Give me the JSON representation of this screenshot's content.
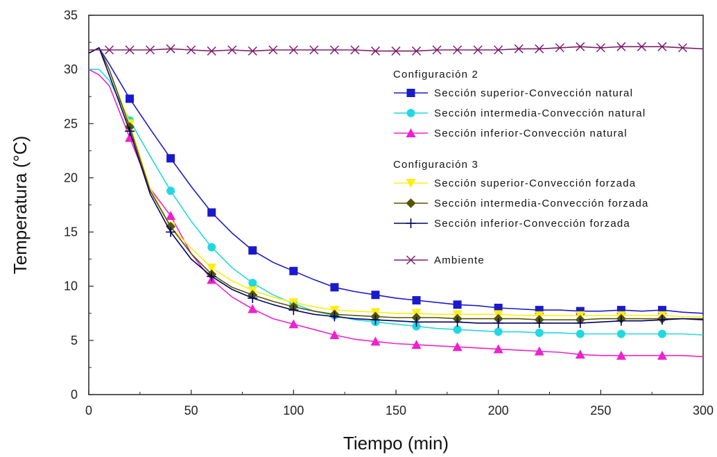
{
  "chart_data": {
    "type": "line",
    "title": "",
    "xlabel": "Tiempo (min)",
    "ylabel": "Temperatura (°C)",
    "xlim": [
      0,
      300
    ],
    "ylim": [
      0,
      35
    ],
    "xticks": [
      "0",
      "50",
      "100",
      "150",
      "200",
      "250",
      "300"
    ],
    "yticks": [
      "0",
      "5",
      "10",
      "15",
      "20",
      "25",
      "30",
      "35"
    ],
    "grid": false,
    "legend_position": "top-right",
    "legend_groups": [
      {
        "title": "Configuración 2",
        "series": [
          0,
          1,
          2
        ]
      },
      {
        "title": "Configuración 3",
        "series": [
          3,
          4,
          5
        ]
      },
      {
        "title": "",
        "series": [
          6
        ]
      }
    ],
    "series": [
      {
        "name": "Sección superior-Convección natural",
        "color": "#1a1acc",
        "marker": "square",
        "x": [
          0,
          5,
          10,
          20,
          30,
          40,
          50,
          60,
          70,
          80,
          90,
          100,
          110,
          120,
          130,
          140,
          150,
          160,
          170,
          180,
          190,
          200,
          210,
          220,
          230,
          240,
          250,
          260,
          270,
          280,
          290,
          300
        ],
        "y": [
          31.5,
          32.0,
          30.5,
          27.3,
          24.5,
          21.8,
          19.2,
          16.8,
          14.9,
          13.3,
          12.2,
          11.4,
          10.6,
          9.9,
          9.5,
          9.2,
          8.9,
          8.7,
          8.5,
          8.3,
          8.2,
          8.0,
          7.9,
          7.8,
          7.8,
          7.7,
          7.7,
          7.8,
          7.7,
          7.8,
          7.6,
          7.5
        ]
      },
      {
        "name": "Sección intermedia-Convección natural",
        "color": "#22d8e0",
        "marker": "circle",
        "x": [
          0,
          5,
          10,
          20,
          30,
          40,
          50,
          60,
          70,
          80,
          90,
          100,
          110,
          120,
          130,
          140,
          150,
          160,
          170,
          180,
          190,
          200,
          210,
          220,
          230,
          240,
          250,
          260,
          270,
          280,
          290,
          300
        ],
        "y": [
          30.0,
          30.0,
          29.0,
          25.3,
          22.0,
          18.8,
          16.0,
          13.6,
          11.7,
          10.3,
          9.2,
          8.4,
          7.7,
          7.3,
          6.9,
          6.7,
          6.5,
          6.3,
          6.1,
          6.0,
          5.9,
          5.8,
          5.8,
          5.7,
          5.7,
          5.6,
          5.6,
          5.6,
          5.6,
          5.6,
          5.6,
          5.5
        ]
      },
      {
        "name": "Sección inferior-Convección natural",
        "color": "#ee22cc",
        "marker": "triangle-up",
        "x": [
          0,
          5,
          10,
          20,
          30,
          40,
          50,
          60,
          70,
          80,
          90,
          100,
          110,
          120,
          130,
          140,
          150,
          160,
          170,
          180,
          190,
          200,
          210,
          220,
          230,
          240,
          250,
          260,
          270,
          280,
          290,
          300
        ],
        "y": [
          30.0,
          29.5,
          28.5,
          23.7,
          19.0,
          16.5,
          13.0,
          10.6,
          9.0,
          7.9,
          7.0,
          6.5,
          6.0,
          5.5,
          5.1,
          4.9,
          4.7,
          4.6,
          4.5,
          4.4,
          4.3,
          4.2,
          4.1,
          4.0,
          3.9,
          3.7,
          3.6,
          3.6,
          3.6,
          3.6,
          3.6,
          3.5
        ]
      },
      {
        "name": "Sección superior-Convección forzada",
        "color": "#ffee11",
        "marker": "triangle-down",
        "x": [
          0,
          5,
          10,
          20,
          30,
          40,
          50,
          60,
          70,
          80,
          90,
          100,
          110,
          120,
          130,
          140,
          150,
          160,
          170,
          180,
          190,
          200,
          210,
          220,
          230,
          240,
          250,
          260,
          270,
          280,
          290,
          300
        ],
        "y": [
          31.5,
          32.0,
          30.0,
          25.0,
          19.0,
          15.5,
          13.5,
          11.7,
          10.5,
          9.6,
          9.0,
          8.5,
          8.1,
          7.8,
          7.7,
          7.6,
          7.5,
          7.5,
          7.4,
          7.4,
          7.4,
          7.4,
          7.3,
          7.3,
          7.3,
          7.3,
          7.3,
          7.3,
          7.3,
          7.3,
          7.2,
          7.2
        ]
      },
      {
        "name": "Sección intermedia-Convección forzada",
        "color": "#555500",
        "marker": "diamond",
        "x": [
          0,
          5,
          10,
          20,
          30,
          40,
          50,
          60,
          70,
          80,
          90,
          100,
          110,
          120,
          130,
          140,
          150,
          160,
          170,
          180,
          190,
          200,
          210,
          220,
          230,
          240,
          250,
          260,
          270,
          280,
          290,
          300
        ],
        "y": [
          31.5,
          32.0,
          30.0,
          24.7,
          18.8,
          15.5,
          13.0,
          11.1,
          9.9,
          9.2,
          8.6,
          8.1,
          7.7,
          7.4,
          7.3,
          7.2,
          7.1,
          7.1,
          7.1,
          7.0,
          7.0,
          7.0,
          7.0,
          6.9,
          6.9,
          6.9,
          7.0,
          7.0,
          7.0,
          7.0,
          7.0,
          7.0
        ]
      },
      {
        "name": "Sección inferior-Convección forzada",
        "color": "#000066",
        "marker": "plus",
        "x": [
          0,
          5,
          10,
          20,
          30,
          40,
          50,
          60,
          70,
          80,
          90,
          100,
          110,
          120,
          130,
          140,
          150,
          160,
          170,
          180,
          190,
          200,
          210,
          220,
          230,
          240,
          250,
          260,
          270,
          280,
          290,
          300
        ],
        "y": [
          31.5,
          32.0,
          29.5,
          24.3,
          18.5,
          15.0,
          12.5,
          10.9,
          9.7,
          8.9,
          8.3,
          7.8,
          7.4,
          7.2,
          7.0,
          6.9,
          6.8,
          6.7,
          6.7,
          6.7,
          6.6,
          6.6,
          6.6,
          6.6,
          6.6,
          6.6,
          6.7,
          6.8,
          6.8,
          6.9,
          7.0,
          6.9
        ]
      },
      {
        "name": "Ambiente",
        "color": "#7a1f6a",
        "marker": "x",
        "x": [
          0,
          10,
          20,
          30,
          40,
          50,
          60,
          70,
          80,
          90,
          100,
          110,
          120,
          130,
          140,
          150,
          160,
          170,
          180,
          190,
          200,
          210,
          220,
          230,
          240,
          250,
          260,
          270,
          280,
          290,
          300
        ],
        "y": [
          31.8,
          31.8,
          31.8,
          31.8,
          31.9,
          31.8,
          31.7,
          31.8,
          31.7,
          31.8,
          31.8,
          31.8,
          31.8,
          31.8,
          31.7,
          31.7,
          31.7,
          31.8,
          31.8,
          31.8,
          31.8,
          31.9,
          31.9,
          32.0,
          32.1,
          32.0,
          32.1,
          32.1,
          32.1,
          32.0,
          31.9
        ]
      }
    ]
  }
}
